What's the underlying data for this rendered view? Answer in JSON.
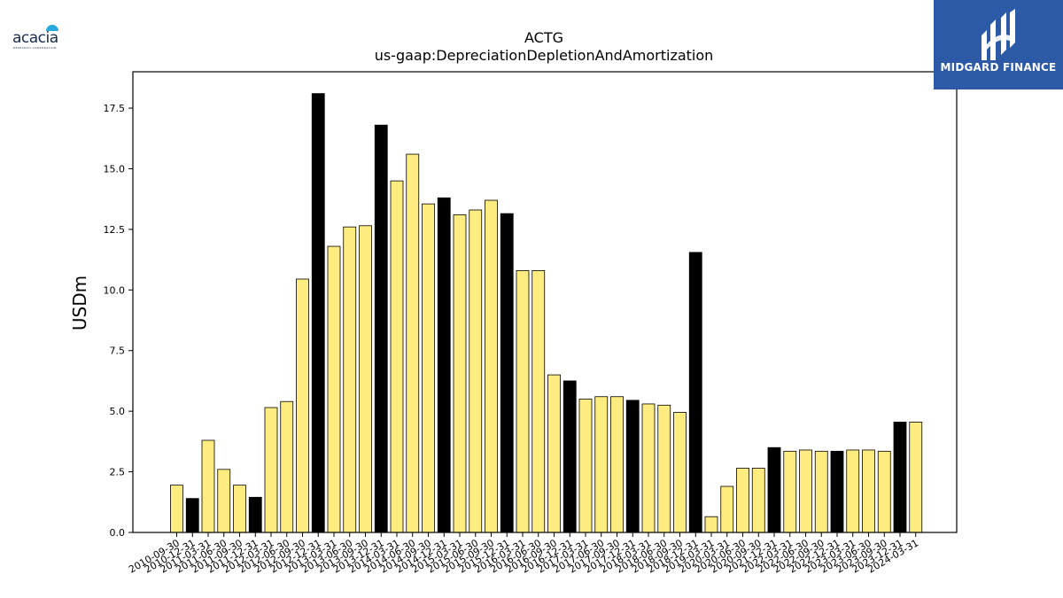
{
  "logos": {
    "left": {
      "name": "acacia",
      "subtext": "RESEARCH CORPORATION"
    },
    "right": {
      "name": "MIDGARD FINANCE"
    }
  },
  "colors": {
    "highlight": "#ffec80",
    "dark": "#000000",
    "edge": "#000000"
  },
  "chart_data": {
    "type": "bar",
    "title": "ACTG",
    "subtitle": "us-gaap:DepreciationDepletionAndAmortization",
    "ylabel": "USDm",
    "xlabel": "",
    "ylim": [
      0,
      19
    ],
    "yticks": [
      0.0,
      2.5,
      5.0,
      7.5,
      10.0,
      12.5,
      15.0,
      17.5
    ],
    "grid": false,
    "categories": [
      "2010-09-30",
      "2010-12-31",
      "2011-03-31",
      "2011-06-30",
      "2011-09-30",
      "2011-12-31",
      "2012-03-31",
      "2012-06-30",
      "2012-09-30",
      "2012-12-31",
      "2013-03-31",
      "2013-06-30",
      "2013-09-30",
      "2013-12-31",
      "2014-03-31",
      "2014-06-30",
      "2014-09-30",
      "2014-12-31",
      "2015-03-31",
      "2015-06-30",
      "2015-09-30",
      "2015-12-31",
      "2016-03-31",
      "2016-06-30",
      "2016-09-30",
      "2016-12-31",
      "2017-03-31",
      "2017-06-30",
      "2017-09-30",
      "2017-12-31",
      "2018-03-31",
      "2018-06-30",
      "2018-09-30",
      "2018-12-31",
      "2019-03-31",
      "2020-03-31",
      "2020-06-30",
      "2020-09-30",
      "2021-12-31",
      "2022-03-31",
      "2022-06-30",
      "2022-09-30",
      "2022-12-31",
      "2023-03-31",
      "2023-06-30",
      "2023-09-30",
      "2023-12-31",
      "2024-03-31"
    ],
    "values": [
      1.95,
      1.4,
      3.8,
      2.6,
      1.95,
      1.45,
      5.15,
      5.4,
      10.45,
      18.1,
      11.8,
      12.6,
      12.65,
      16.8,
      14.5,
      15.6,
      13.55,
      13.8,
      13.1,
      13.3,
      13.7,
      13.15,
      10.8,
      10.8,
      6.5,
      6.25,
      5.5,
      5.6,
      5.6,
      5.45,
      5.3,
      5.25,
      4.95,
      11.55,
      0.65,
      1.9,
      2.65,
      2.65,
      3.5,
      3.35,
      3.4,
      3.35,
      3.35,
      3.4,
      3.4,
      3.35,
      4.55,
      4.55
    ],
    "bar_types": [
      "h",
      "d",
      "h",
      "h",
      "h",
      "d",
      "h",
      "h",
      "h",
      "d",
      "h",
      "h",
      "h",
      "d",
      "h",
      "h",
      "h",
      "d",
      "h",
      "h",
      "h",
      "d",
      "h",
      "h",
      "h",
      "d",
      "h",
      "h",
      "h",
      "d",
      "h",
      "h",
      "h",
      "d",
      "h",
      "h",
      "h",
      "h",
      "d",
      "h",
      "h",
      "h",
      "d",
      "h",
      "h",
      "h",
      "d",
      "h"
    ]
  }
}
